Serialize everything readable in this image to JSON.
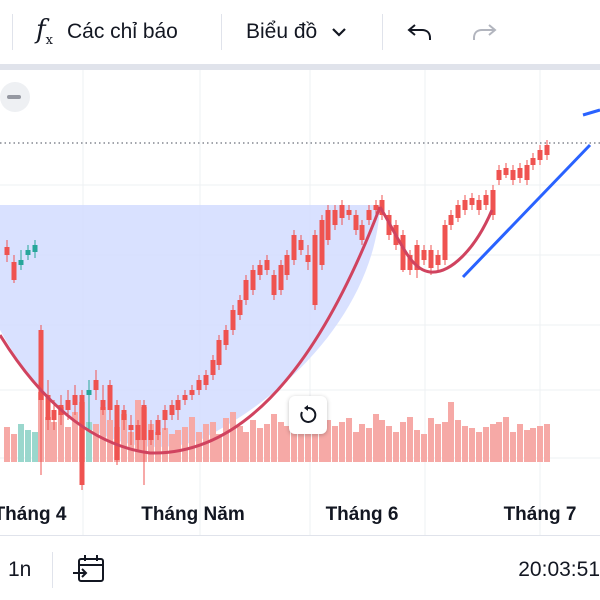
{
  "toolbar": {
    "indicators_label": "Các chỉ báo",
    "chart_type_label": "Biểu đồ"
  },
  "chart_data": {
    "type": "candlestick",
    "x_tick_labels": [
      "Tháng 4",
      "Tháng Năm",
      "Tháng 6",
      "Tháng 7"
    ]
  },
  "bottombar": {
    "interval": "1n",
    "time": "20:03:51"
  },
  "colors": {
    "up": "#26a69a",
    "down": "#ef5350",
    "cup_fill": "#cfd9ff",
    "cup_line": "#d0435f",
    "trend_line": "#2962ff"
  },
  "icons": [
    "fx-icon",
    "chevron-down-icon",
    "undo-icon",
    "redo-icon",
    "minus-icon",
    "reset-icon",
    "calendar-goto-icon"
  ]
}
